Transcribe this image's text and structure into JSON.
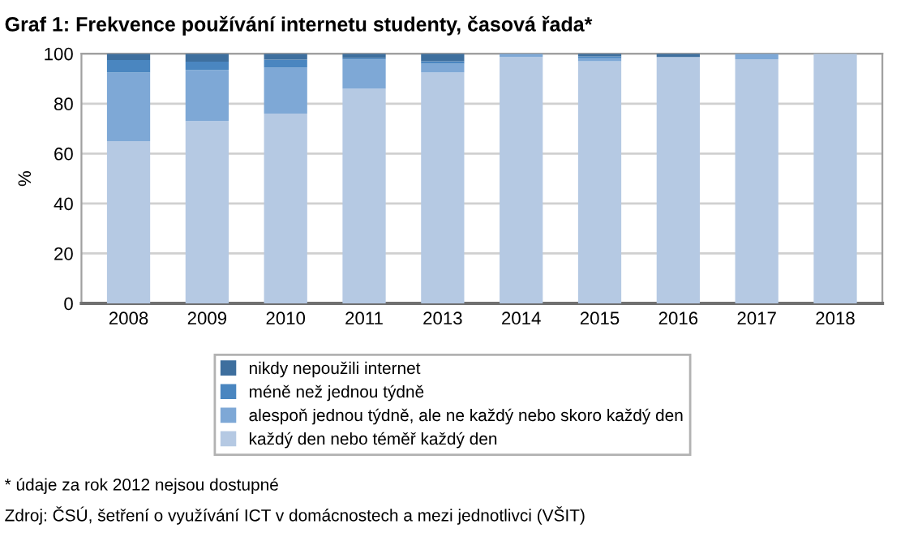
{
  "chart_data": {
    "type": "bar",
    "stacked": true,
    "title": "Graf 1: Frekvence používání internetu studenty, časová řada*",
    "ylabel": "%",
    "categories": [
      "2008",
      "2009",
      "2010",
      "2011",
      "2013",
      "2014",
      "2015",
      "2016",
      "2017",
      "2018"
    ],
    "series": [
      {
        "name": "každý den nebo téměř každý den",
        "color": "#b5c9e3",
        "values": [
          65,
          73,
          76,
          86,
          92.5,
          98.7,
          97,
          98.7,
          97.8,
          100
        ]
      },
      {
        "name": "alespoň jednou týdně, ale ne každý nebo skoro každý den",
        "color": "#7ea8d6",
        "values": [
          27.5,
          20.5,
          18.5,
          11.7,
          3.5,
          1.3,
          1.2,
          0,
          2.2,
          0
        ]
      },
      {
        "name": "méně než jednou týdně",
        "color": "#4a86c0",
        "values": [
          5,
          3.3,
          3.1,
          0.6,
          1,
          0,
          0.7,
          0,
          0,
          0
        ]
      },
      {
        "name": "nikdy nepoužili internet",
        "color": "#3e6f9e",
        "values": [
          2.5,
          3.2,
          2.4,
          1.7,
          3,
          0,
          1.1,
          1.3,
          0,
          0
        ]
      }
    ],
    "ylim": [
      0,
      100
    ],
    "yticks": [
      0,
      20,
      40,
      60,
      80,
      100
    ],
    "grid": "y",
    "legend": "bottom",
    "annotations": [
      "* údaje za rok 2012 nejsou dostupné",
      "Zdroj: ČSÚ, šetření o využívání ICT v domácnostech a mezi jednotlivci (VŠIT)"
    ]
  }
}
